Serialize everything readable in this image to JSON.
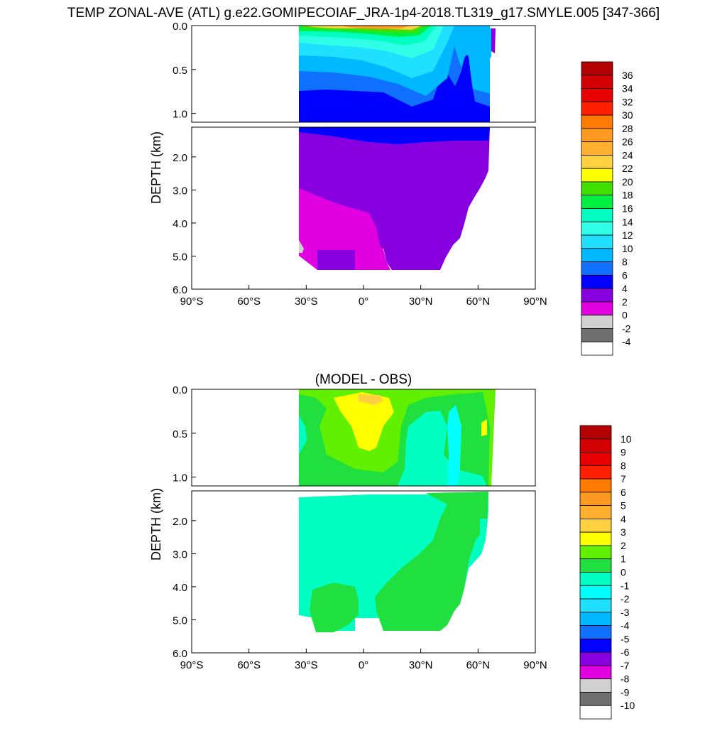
{
  "title": "TEMP ZONAL-AVE (ATL) g.e22.GOMIPECOIAF_JRA-1p4-2018.TL319_g17.SMYLE.005 [347-366]",
  "chart_data": [
    {
      "type": "heatmap",
      "title": "",
      "ylabel": "DEPTH (km)",
      "xlabel": "",
      "x_ticks": [
        "90°S",
        "60°S",
        "30°S",
        "0°",
        "30°N",
        "60°N",
        "90°N"
      ],
      "x_tick_values": [
        -90,
        -60,
        -30,
        0,
        30,
        60,
        90
      ],
      "y_ticks_upper": [
        "0.0",
        "0.5",
        "1.0"
      ],
      "y_tick_values_upper": [
        0.0,
        0.5,
        1.0
      ],
      "y_ticks_lower": [
        "2.0",
        "3.0",
        "4.0",
        "5.0",
        "6.0"
      ],
      "y_tick_values_lower": [
        2.0,
        3.0,
        4.0,
        5.0,
        6.0
      ],
      "xlim": [
        -90,
        90
      ],
      "ylim_upper": [
        0.0,
        1.1
      ],
      "ylim_lower": [
        1.1,
        6.0
      ],
      "colorbar_labels": [
        "36",
        "34",
        "32",
        "30",
        "28",
        "26",
        "24",
        "22",
        "20",
        "18",
        "16",
        "14",
        "12",
        "10",
        "8",
        "6",
        "4",
        "2",
        "0",
        "-2",
        "-4"
      ],
      "colors": [
        "#b40000",
        "#d20000",
        "#e80000",
        "#ff2000",
        "#ff7a00",
        "#ff9a20",
        "#ffb030",
        "#ffd040",
        "#ffff00",
        "#40e000",
        "#00f040",
        "#00ffc0",
        "#30ffe8",
        "#20e0ff",
        "#00b8ff",
        "#1070ff",
        "#0000ff",
        "#8800e0",
        "#e000e0",
        "#d0d0d0",
        "#707070",
        "#ffffff"
      ],
      "bands_upper": [
        {
          "level": 22,
          "points": [
            [
              -33,
              0
            ],
            [
              -33,
              0.03
            ],
            [
              -20,
              0.04
            ],
            [
              -5,
              0.03
            ],
            [
              10,
              0.03
            ],
            [
              20,
              0.05
            ],
            [
              30,
              0.04
            ],
            [
              33,
              0
            ]
          ]
        },
        {
          "level": 28,
          "points": [
            [
              -5,
              0
            ],
            [
              -3,
              0.03
            ],
            [
              10,
              0.04
            ],
            [
              22,
              0.03
            ],
            [
              25,
              0
            ]
          ]
        }
      ],
      "bands_lower": []
    },
    {
      "type": "heatmap",
      "title": "(MODEL - OBS)",
      "ylabel": "DEPTH (km)",
      "xlabel": "",
      "x_ticks": [
        "90°S",
        "60°S",
        "30°S",
        "0°",
        "30°N",
        "60°N",
        "90°N"
      ],
      "x_tick_values": [
        -90,
        -60,
        -30,
        0,
        30,
        60,
        90
      ],
      "y_ticks_upper": [
        "0.0",
        "0.5",
        "1.0"
      ],
      "y_tick_values_upper": [
        0.0,
        0.5,
        1.0
      ],
      "y_ticks_lower": [
        "2.0",
        "3.0",
        "4.0",
        "5.0",
        "6.0"
      ],
      "y_tick_values_lower": [
        2.0,
        3.0,
        4.0,
        5.0,
        6.0
      ],
      "xlim": [
        -90,
        90
      ],
      "ylim_upper": [
        0.0,
        1.1
      ],
      "ylim_lower": [
        1.1,
        6.0
      ],
      "colorbar_labels": [
        "10",
        "9",
        "8",
        "7",
        "6",
        "5",
        "4",
        "3",
        "2",
        "1",
        "0",
        "-1",
        "-2",
        "-3",
        "-4",
        "-5",
        "-6",
        "-7",
        "-8",
        "-9",
        "-10"
      ],
      "colors": [
        "#b40000",
        "#d20000",
        "#e80000",
        "#ff2000",
        "#ff7a00",
        "#ff9a20",
        "#ffb030",
        "#ffd040",
        "#ffff00",
        "#60f000",
        "#20e040",
        "#00ffc0",
        "#00ffff",
        "#20e0ff",
        "#00b8ff",
        "#1070ff",
        "#0000ff",
        "#8800e0",
        "#e000e0",
        "#d0d0d0",
        "#707070",
        "#ffffff"
      ]
    }
  ]
}
